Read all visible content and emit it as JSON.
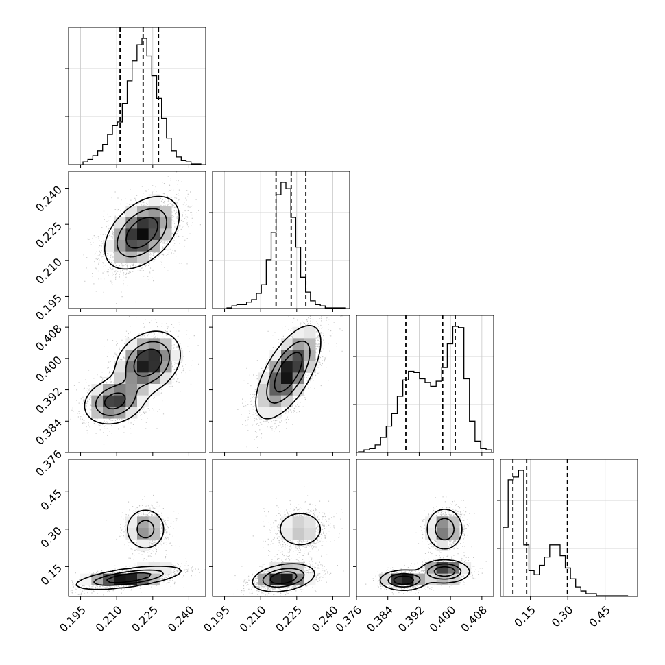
{
  "chart_data": {
    "type": "corner",
    "parameters": [
      {
        "ticks": [
          0.195,
          0.21,
          0.225,
          0.24
        ],
        "tick_labels": [
          "0.195",
          "0.210",
          "0.225",
          "0.240"
        ],
        "range": [
          0.19,
          0.247
        ]
      },
      {
        "ticks": [
          0.195,
          0.21,
          0.225,
          0.24
        ],
        "tick_labels": [
          "0.195",
          "0.210",
          "0.225",
          "0.240"
        ],
        "range": [
          0.19,
          0.247
        ]
      },
      {
        "ticks": [
          0.376,
          0.384,
          0.392,
          0.4,
          0.408
        ],
        "tick_labels": [
          "0.376",
          "0.384",
          "0.392",
          "0.400",
          "0.408"
        ],
        "range": [
          0.376,
          0.411
        ]
      },
      {
        "ticks": [
          0.15,
          0.3,
          0.45
        ],
        "tick_labels": [
          "0.15",
          "0.30",
          "0.45"
        ],
        "range": [
          0.03,
          0.58
        ]
      }
    ],
    "histograms": [
      {
        "bin_range": [
          0.196,
          0.245
        ],
        "counts": [
          1,
          3,
          6,
          10,
          15,
          23,
          30,
          33,
          48,
          66,
          82,
          95,
          100,
          86,
          70,
          52,
          36,
          20,
          10,
          5,
          2,
          1,
          0,
          0
        ],
        "quantiles": [
          0.2114,
          0.221,
          0.2274
        ]
      },
      {
        "bin_range": [
          0.196,
          0.245
        ],
        "counts": [
          0,
          1,
          2,
          2,
          4,
          6,
          11,
          18,
          38,
          60,
          90,
          100,
          95,
          72,
          48,
          24,
          12,
          5,
          2,
          1,
          0,
          0,
          0,
          0
        ],
        "quantiles": [
          0.2164,
          0.2227,
          0.2288
        ]
      },
      {
        "bin_range": [
          0.3765,
          0.4105
        ],
        "counts": [
          0,
          1,
          2,
          5,
          11,
          20,
          30,
          44,
          57,
          64,
          63,
          58,
          55,
          52,
          56,
          67,
          86,
          100,
          99,
          58,
          24,
          8,
          2,
          1
        ],
        "quantiles": [
          0.3886,
          0.398,
          0.4012
        ]
      },
      {
        "bin_range": [
          0.04,
          0.54
        ],
        "counts": [
          50,
          85,
          87,
          92,
          37,
          18,
          15,
          22,
          28,
          37,
          37,
          29,
          20,
          12,
          6,
          3,
          1,
          1,
          0,
          0,
          0,
          0,
          0,
          0
        ],
        "quantiles": [
          0.08,
          0.135,
          0.2985
        ]
      }
    ]
  }
}
